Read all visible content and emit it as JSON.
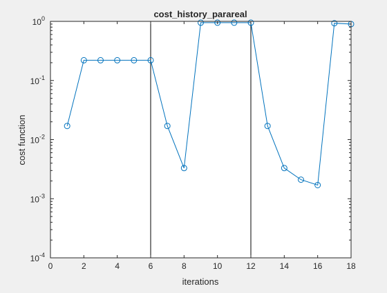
{
  "chart_data": {
    "type": "line",
    "title": "cost_history_parareal",
    "xlabel": "iterations",
    "ylabel": "cost function",
    "xlim": [
      0,
      18
    ],
    "ylim": [
      0.0001,
      1
    ],
    "yscale": "log",
    "grid": false,
    "x_ticks": [
      0,
      2,
      4,
      6,
      8,
      10,
      12,
      14,
      16,
      18
    ],
    "y_ticks": [
      {
        "value": 0.0001,
        "base": "10",
        "exp": "-4"
      },
      {
        "value": 0.001,
        "base": "10",
        "exp": "-3"
      },
      {
        "value": 0.01,
        "base": "10",
        "exp": "-2"
      },
      {
        "value": 0.1,
        "base": "10",
        "exp": "-1"
      },
      {
        "value": 1,
        "base": "10",
        "exp": "0"
      }
    ],
    "vertical_lines": [
      6,
      12
    ],
    "series": [
      {
        "color": "#0072BD",
        "marker": "circle",
        "x": [
          1,
          2,
          3,
          4,
          5,
          6,
          7,
          8,
          9,
          10,
          11,
          12,
          13,
          14,
          15,
          16,
          17,
          18
        ],
        "y": [
          0.017,
          0.22,
          0.22,
          0.22,
          0.22,
          0.22,
          0.017,
          0.0033,
          0.95,
          0.95,
          0.95,
          0.95,
          0.017,
          0.0033,
          0.0021,
          0.0017,
          0.93,
          0.9
        ]
      }
    ]
  }
}
